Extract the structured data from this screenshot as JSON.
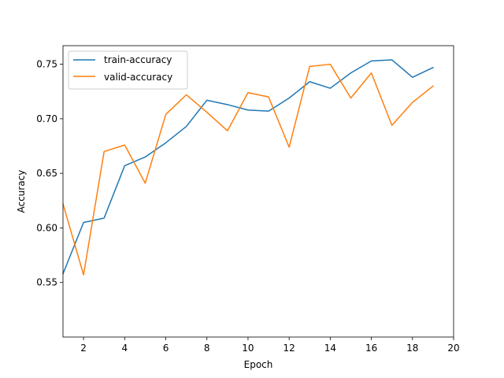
{
  "chart_data": {
    "type": "line",
    "title": "",
    "xlabel": "Epoch",
    "ylabel": "Accuracy",
    "xlim": [
      1,
      20
    ],
    "ylim": [
      0.5,
      0.767
    ],
    "xticks": [
      2,
      4,
      6,
      8,
      10,
      12,
      14,
      16,
      18,
      20
    ],
    "yticks": [
      0.55,
      0.6,
      0.65,
      0.7,
      0.75
    ],
    "xtick_labels": [
      "2",
      "4",
      "6",
      "8",
      "10",
      "12",
      "14",
      "16",
      "18",
      "20"
    ],
    "ytick_labels": [
      "0.55",
      "0.60",
      "0.65",
      "0.70",
      "0.75"
    ],
    "grid": false,
    "legend_position": "top-left",
    "x": [
      1,
      2,
      3,
      4,
      5,
      6,
      7,
      8,
      9,
      10,
      11,
      12,
      13,
      14,
      15,
      16,
      17,
      18,
      19
    ],
    "series": [
      {
        "name": "train-accuracy",
        "color": "#1f77b4",
        "values": [
          0.558,
          0.605,
          0.609,
          0.657,
          0.665,
          0.678,
          0.693,
          0.717,
          0.713,
          0.708,
          0.707,
          0.719,
          0.734,
          0.728,
          0.742,
          0.753,
          0.754,
          0.738,
          0.747
        ]
      },
      {
        "name": "valid-accuracy",
        "color": "#ff7f0e",
        "values": [
          0.622,
          0.557,
          0.67,
          0.676,
          0.641,
          0.704,
          0.722,
          0.706,
          0.689,
          0.724,
          0.72,
          0.674,
          0.748,
          0.75,
          0.719,
          0.742,
          0.694,
          0.715,
          0.73
        ]
      }
    ]
  }
}
